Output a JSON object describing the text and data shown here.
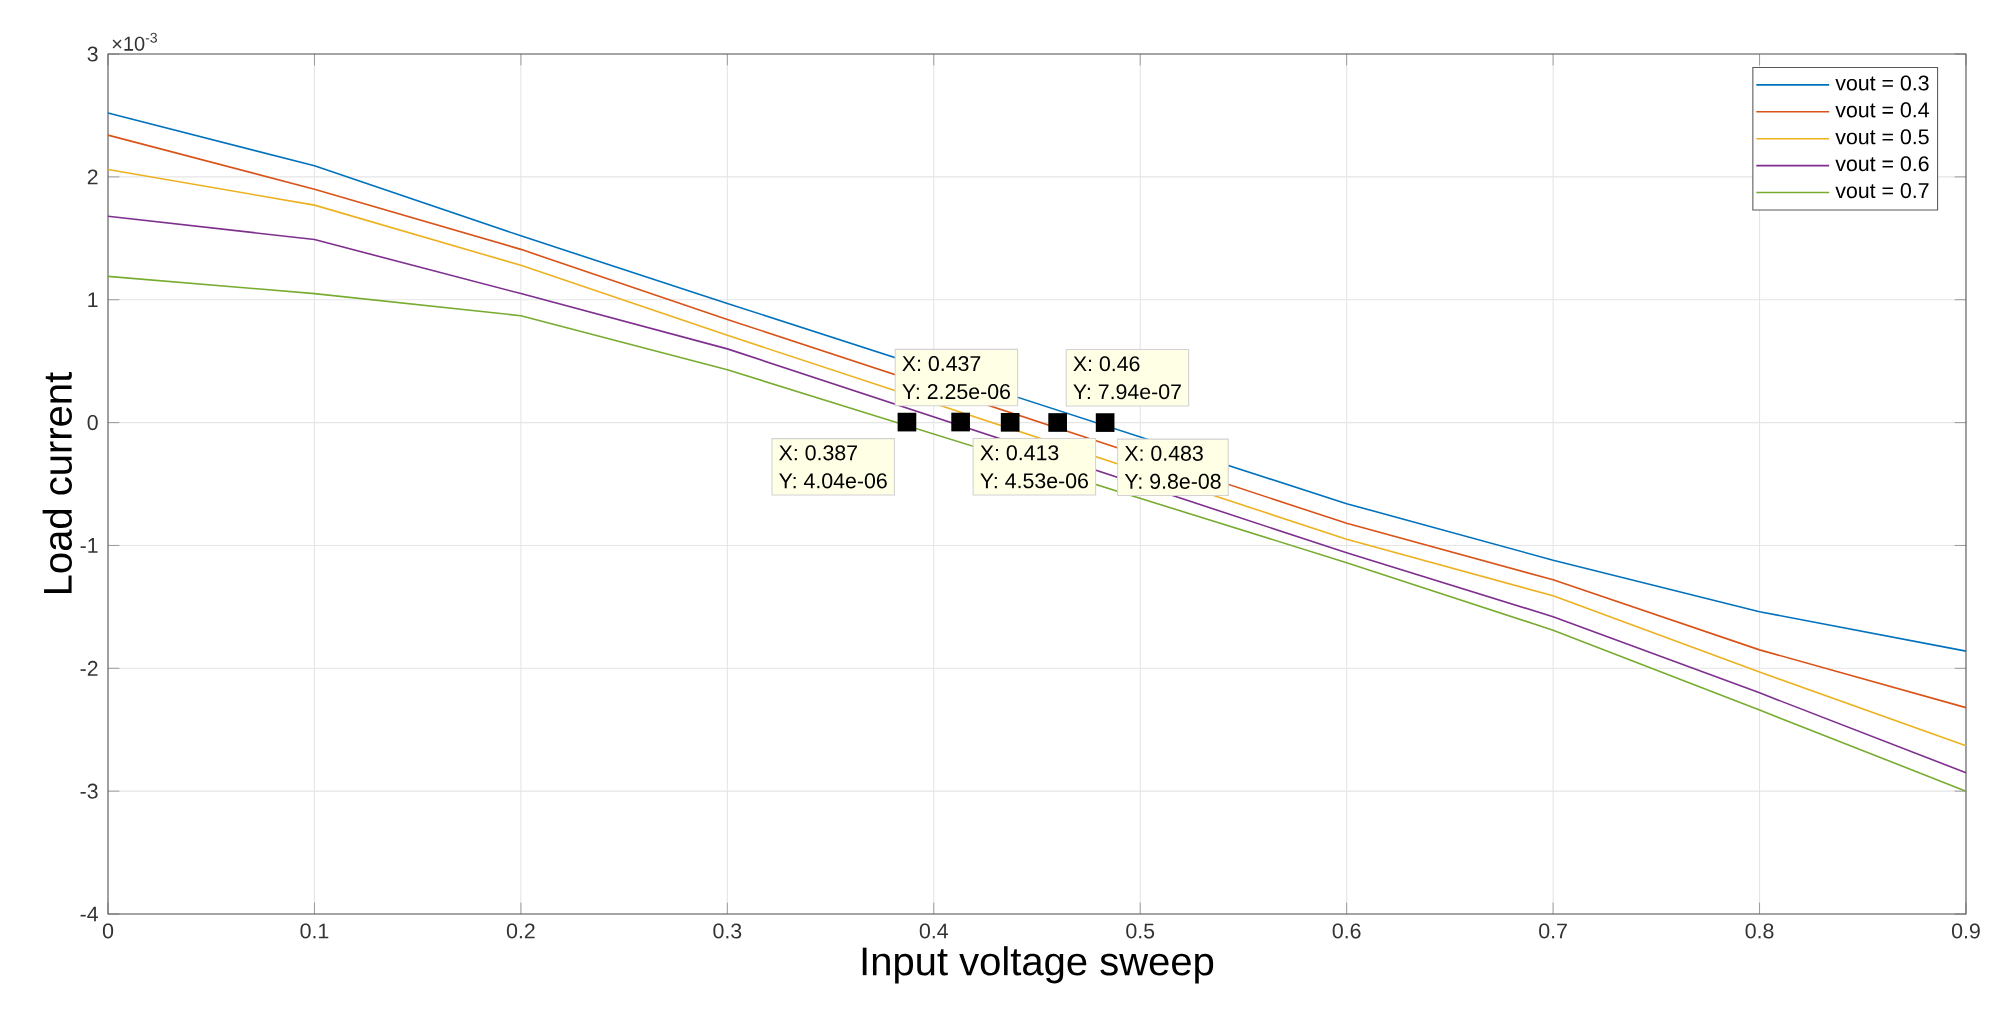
{
  "chart_data": {
    "type": "line",
    "xlabel": "Input voltage sweep",
    "ylabel": "Load current",
    "x": [
      0,
      0.1,
      0.2,
      0.3,
      0.6,
      0.7,
      0.8,
      0.9
    ],
    "series": [
      {
        "name": "vout = 0.3",
        "color": "#0072bd",
        "values": [
          2.52,
          2.09,
          1.52,
          0.97,
          -0.66,
          -1.12,
          -1.54,
          -1.86
        ]
      },
      {
        "name": "vout = 0.4",
        "color": "#d95319",
        "values": [
          2.34,
          1.9,
          1.41,
          0.84,
          -0.82,
          -1.28,
          -1.85,
          -2.32
        ]
      },
      {
        "name": "vout = 0.5",
        "color": "#edb120",
        "values": [
          2.06,
          1.77,
          1.28,
          0.71,
          -0.95,
          -1.41,
          -2.03,
          -2.63
        ]
      },
      {
        "name": "vout = 0.6",
        "color": "#7e2f8e",
        "values": [
          1.68,
          1.49,
          1.05,
          0.6,
          -1.06,
          -1.58,
          -2.2,
          -2.85
        ]
      },
      {
        "name": "vout = 0.7",
        "color": "#77ac30",
        "values": [
          1.19,
          1.05,
          0.87,
          0.43,
          -1.14,
          -1.69,
          -2.34,
          -3
        ]
      }
    ],
    "xlim": [
      0,
      0.9
    ],
    "xticks": [
      0,
      0.1,
      0.2,
      0.3,
      0.4,
      0.5,
      0.6,
      0.7,
      0.8,
      0.9
    ],
    "ylim": [
      -4,
      3
    ],
    "yticks": [
      -4,
      -3,
      -2,
      -1,
      0,
      1,
      2,
      3
    ],
    "grid": true,
    "legend": "top right",
    "marker": "none",
    "line_style": "solid",
    "annotations": [
      "×10$^{-3}$",
      {
        "text": "X: 0.387",
        "x": 0.387,
        "y": 0.00404
      },
      {
        "text": "Y: 4.04e-06",
        "x": 0.387,
        "y": 0.00404
      },
      {
        "text": "X: 0.413",
        "x": 0.413,
        "y": 0.00453
      },
      {
        "text": "Y: 4.53e-06",
        "x": 0.413,
        "y": 0.00453
      },
      {
        "text": "X: 0.437",
        "x": 0.437,
        "y": 0.00225
      },
      {
        "text": "Y: 2.25e-06",
        "x": 0.437,
        "y": 0.00225
      },
      {
        "text": "X: 0.46",
        "x": 0.46,
        "y": 0.000794
      },
      {
        "text": "Y: 7.94e-07",
        "x": 0.46,
        "y": 0.000794
      },
      {
        "text": "X: 0.483",
        "x": 0.483,
        "y": 9.8e-05
      },
      {
        "text": "Y: 9.8e-08",
        "x": 0.483,
        "y": 9.8e-05
      }
    ]
  }
}
